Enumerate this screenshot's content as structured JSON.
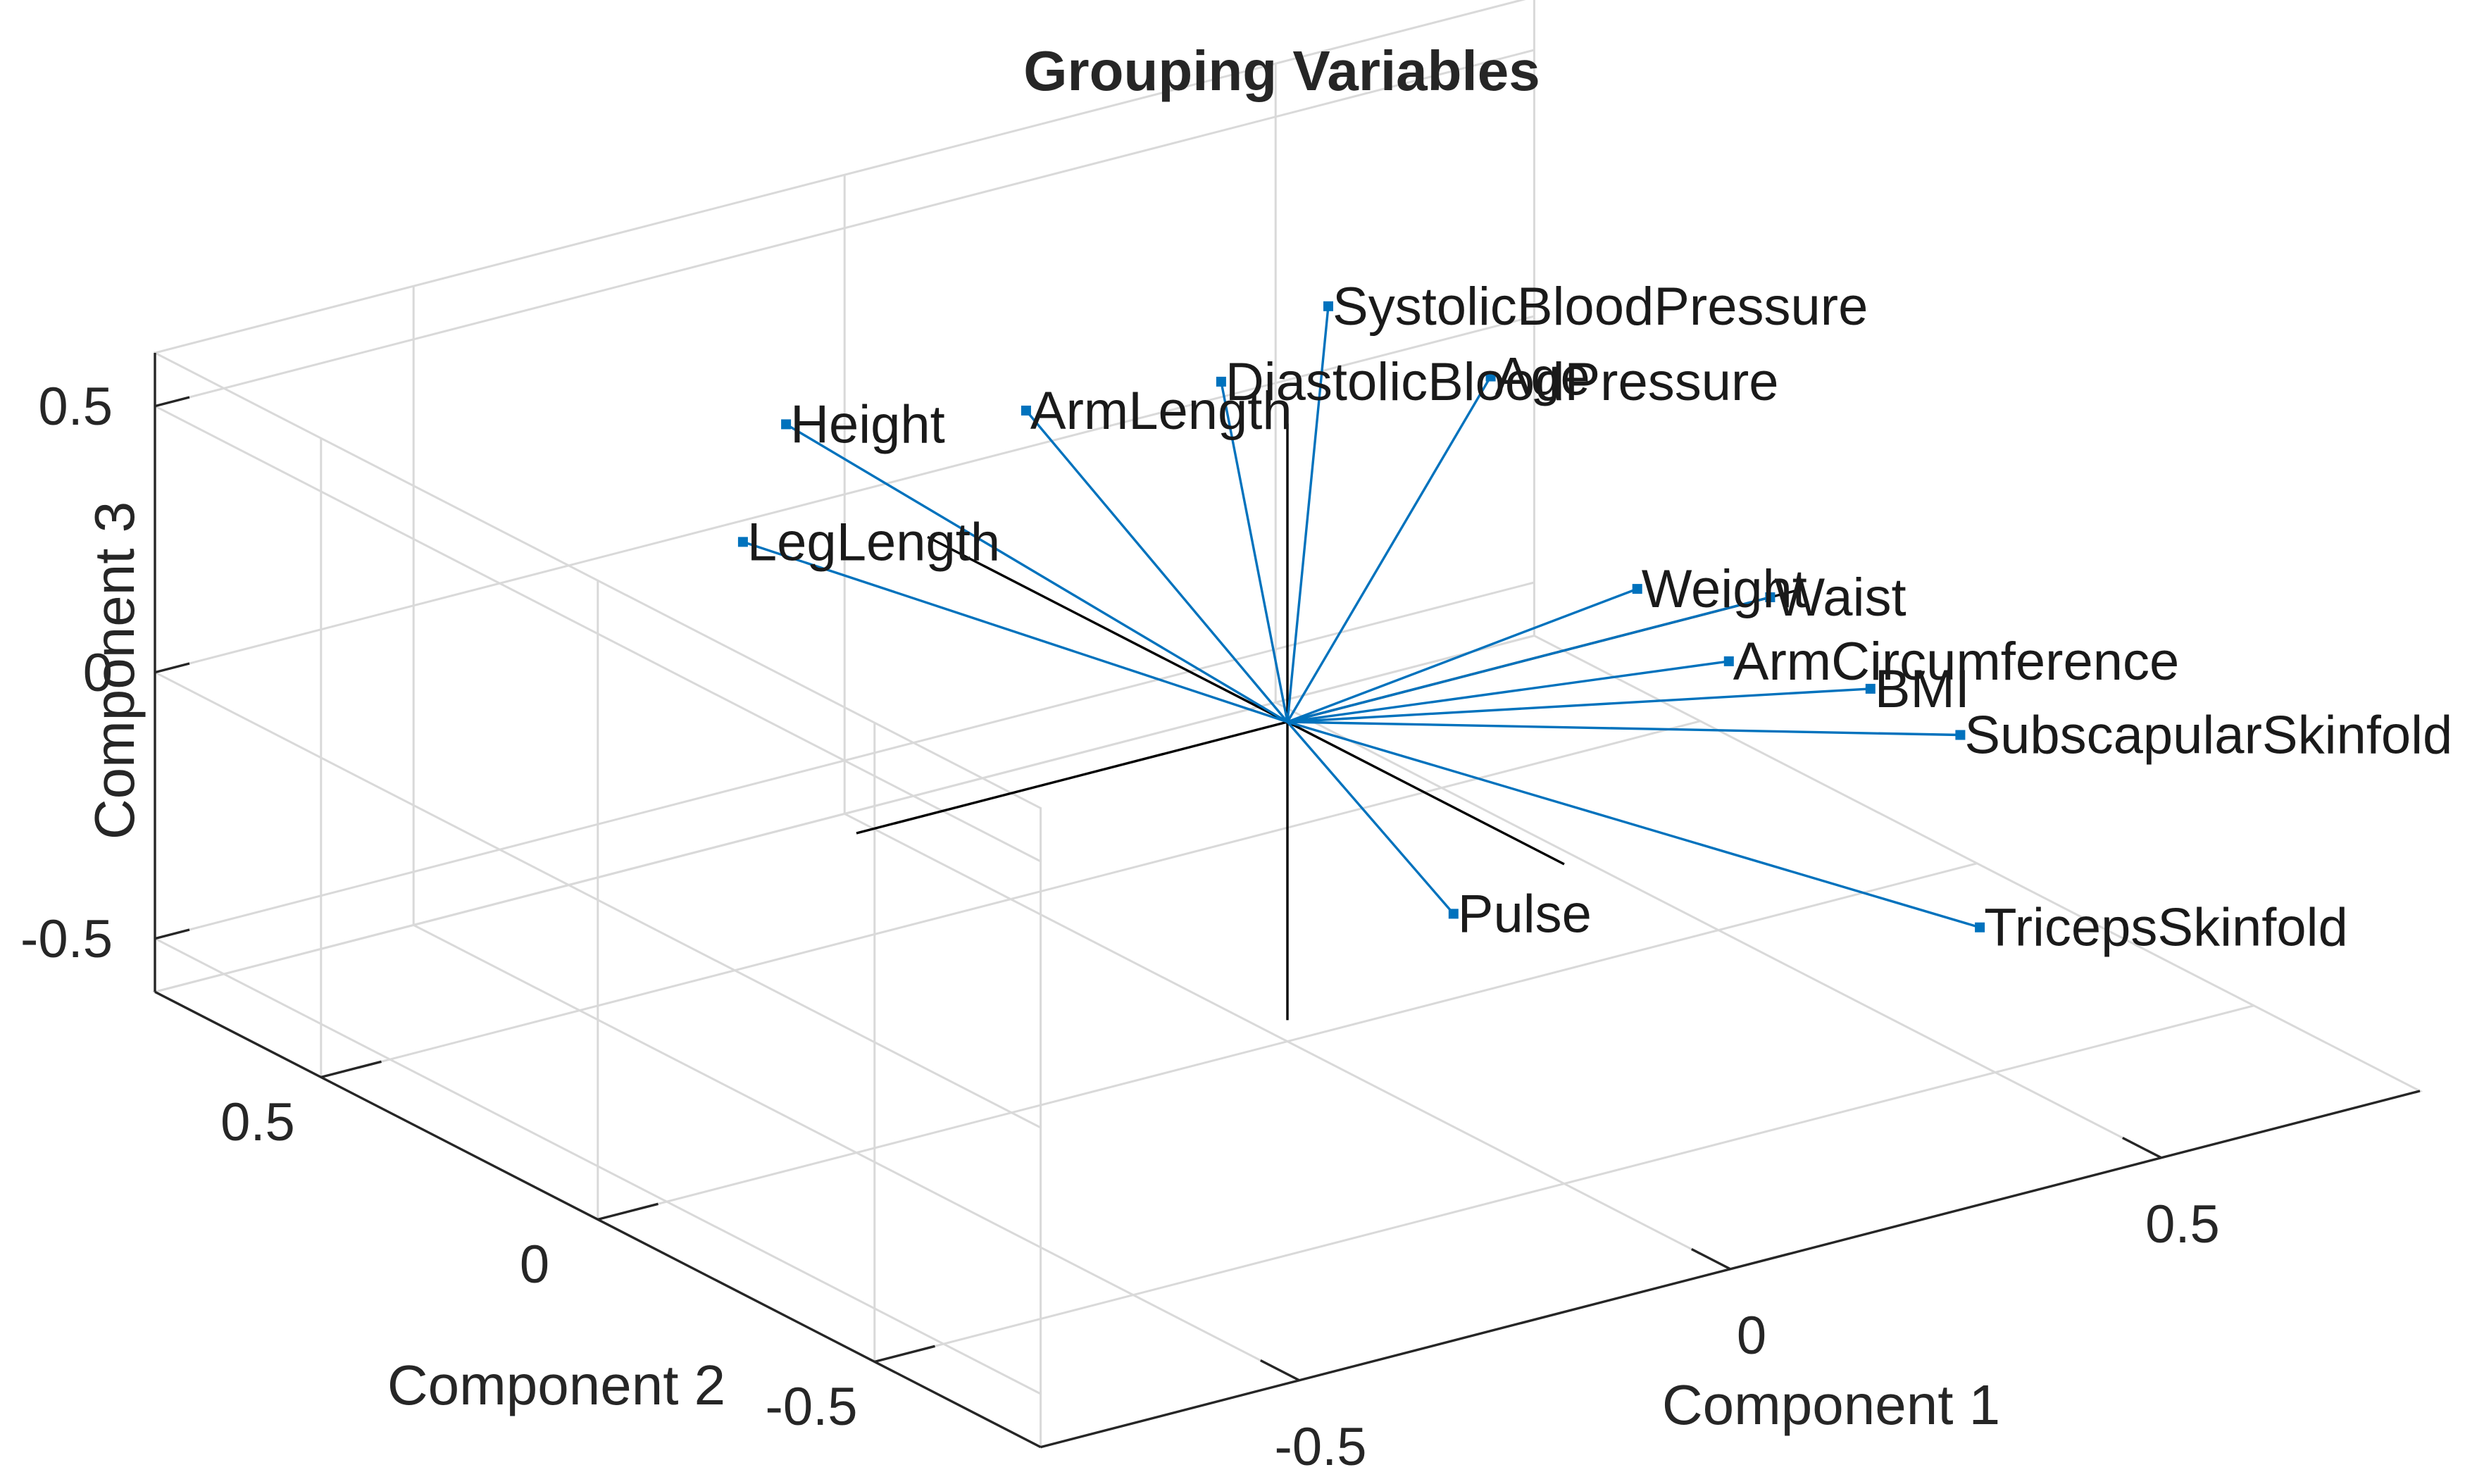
{
  "chart_data": {
    "type": "biplot-3d",
    "title": "Grouping Variables",
    "xlabel": "Component 1",
    "ylabel": "Component 2",
    "zlabel": "Component 3",
    "xlim": [
      -0.8,
      0.8
    ],
    "ylim": [
      -0.8,
      0.8
    ],
    "zlim": [
      -0.6,
      0.6
    ],
    "xticks": [
      "-0.5",
      "0",
      "0.5"
    ],
    "yticks": [
      "-0.5",
      "0",
      "0.5"
    ],
    "zticks": [
      "-0.5",
      "0",
      "0.5"
    ],
    "grid": true,
    "color": "#0072bd",
    "series": [
      {
        "label": "SystolicBloodPressure",
        "x": 0.24,
        "y": 0.3,
        "z": 0.52
      },
      {
        "label": "Age",
        "x": 0.3,
        "y": 0.1,
        "z": 0.47
      },
      {
        "label": "DiastolicBloodPressure",
        "x": 0.18,
        "y": 0.4,
        "z": 0.35
      },
      {
        "label": "ArmLength",
        "x": 0.05,
        "y": 0.55,
        "z": 0.27
      },
      {
        "label": "Height",
        "x": -0.1,
        "y": 0.75,
        "z": 0.2
      },
      {
        "label": "LegLength",
        "x": -0.15,
        "y": 0.75,
        "z": 0.0
      },
      {
        "label": "Weight",
        "x": 0.47,
        "y": 0.1,
        "z": 0.0
      },
      {
        "label": "Waist",
        "x": 0.56,
        "y": 0.0,
        "z": 0.0
      },
      {
        "label": "ArmCircumference",
        "x": 0.48,
        "y": -0.05,
        "z": -0.06
      },
      {
        "label": "BMI",
        "x": 0.58,
        "y": -0.15,
        "z": -0.1
      },
      {
        "label": "SubscapularSkinfold",
        "x": 0.62,
        "y": -0.25,
        "z": -0.15
      },
      {
        "label": "Pulse",
        "x": 0.0,
        "y": -0.3,
        "z": -0.2
      },
      {
        "label": "TricepsSkinfold",
        "x": 0.45,
        "y": -0.55,
        "z": -0.28
      }
    ]
  }
}
